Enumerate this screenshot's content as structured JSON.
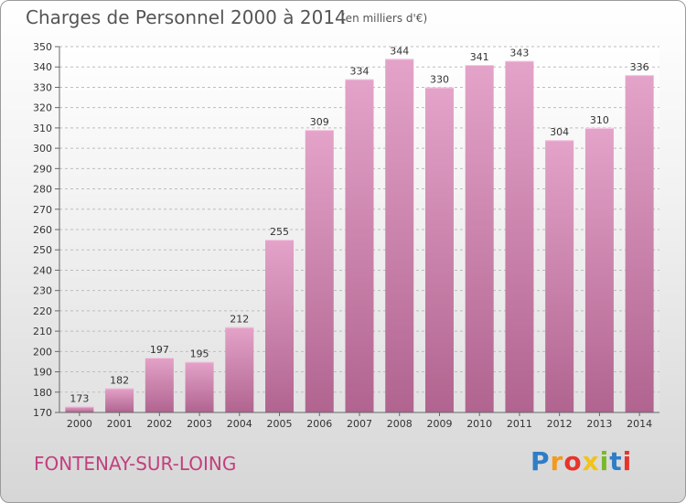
{
  "page": {
    "title": "Charges de Personnel 2000 à 2014",
    "subtitle": "(en milliers d'€)",
    "location": "FONTENAY-SUR-LOING",
    "logo": {
      "letters": [
        "P",
        "r",
        "o",
        "x",
        "i",
        "t",
        "i"
      ],
      "colors": [
        "#2f7dc6",
        "#f29a1f",
        "#e8332b",
        "#f2c318",
        "#7ab829",
        "#2f7dc6",
        "#e8332b"
      ]
    }
  },
  "chart_data": {
    "type": "bar",
    "title": "Charges de Personnel 2000 à 2014",
    "subtitle": "(en milliers d'€)",
    "xlabel": "",
    "ylabel": "",
    "categories": [
      "2000",
      "2001",
      "2002",
      "2003",
      "2004",
      "2005",
      "2006",
      "2007",
      "2008",
      "2009",
      "2010",
      "2011",
      "2012",
      "2013",
      "2014"
    ],
    "values": [
      173,
      182,
      197,
      195,
      212,
      255,
      309,
      334,
      344,
      330,
      341,
      343,
      304,
      310,
      336
    ],
    "ylim": [
      170,
      350
    ],
    "yticks": [
      170,
      180,
      190,
      200,
      210,
      220,
      230,
      240,
      250,
      260,
      270,
      280,
      290,
      300,
      310,
      320,
      330,
      340,
      350
    ],
    "grid": true,
    "bar_color_top": "#e4a3c9",
    "bar_color_bottom": "#b0648f"
  }
}
